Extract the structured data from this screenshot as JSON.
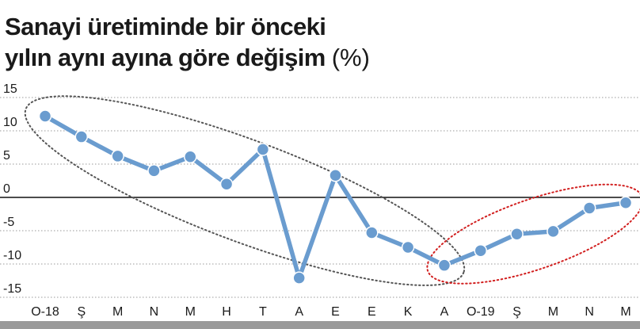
{
  "title": {
    "line1": "Sanayi üretiminde bir önceki",
    "line2": "yılın aynı ayına göre değişim",
    "unit": "(%)"
  },
  "chart_data": {
    "type": "line",
    "title": "Sanayi üretiminde bir önceki yılın aynı ayına göre değişim (%)",
    "xlabel": "",
    "ylabel": "",
    "ylim": [
      -15,
      15
    ],
    "yticks": [
      15,
      10,
      5,
      0,
      -5,
      -10,
      -15
    ],
    "categories": [
      "O-18",
      "Ş",
      "M",
      "N",
      "M",
      "H",
      "T",
      "A",
      "E",
      "E",
      "K",
      "A",
      "O-19",
      "Ş",
      "M",
      "N",
      "M"
    ],
    "values": [
      12.2,
      9.1,
      6.2,
      4.0,
      6.1,
      2.0,
      7.2,
      -12.1,
      3.3,
      -5.3,
      -7.5,
      -10.2,
      -8.0,
      -5.5,
      -5.1,
      -1.6,
      -0.8
    ],
    "grid": true,
    "line_color": "#6a9ccf",
    "highlight_colors": [
      "#555555",
      "#d22020"
    ]
  }
}
